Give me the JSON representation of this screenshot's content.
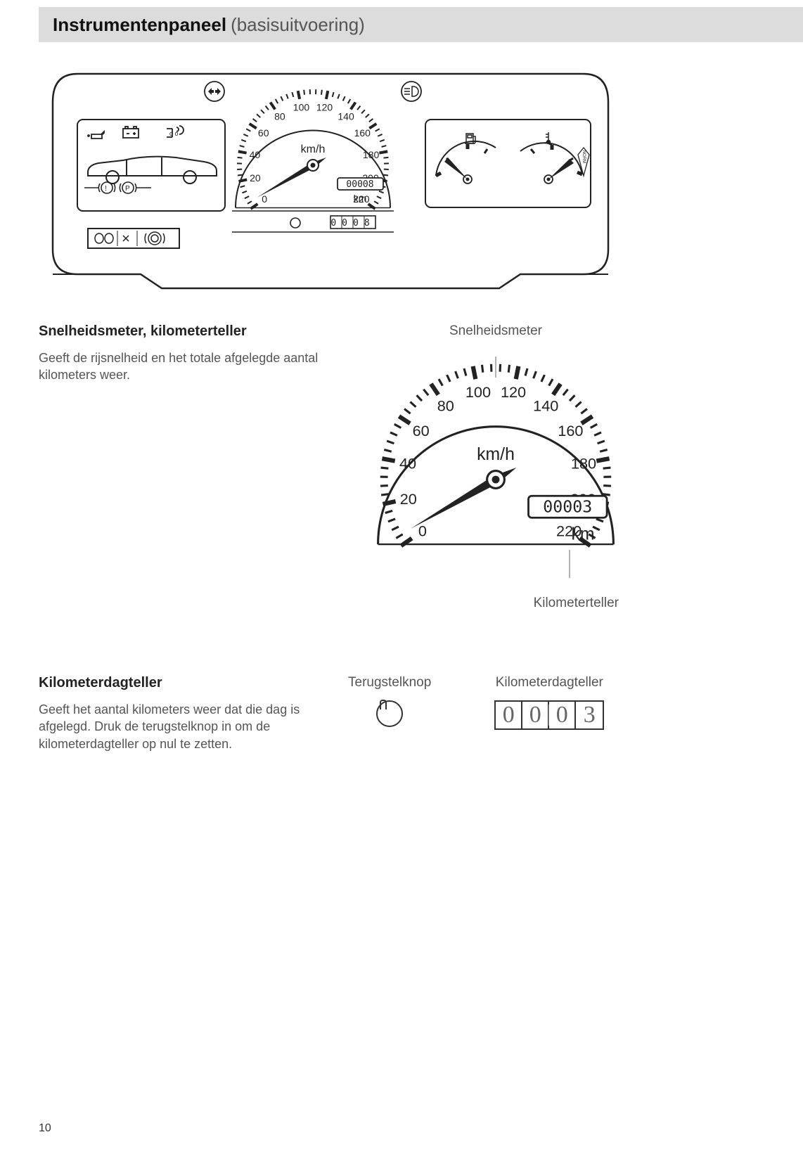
{
  "page_number": "10",
  "header": {
    "title_bold": "Instrumentenpaneel",
    "title_paren": "(basisuitvoering)"
  },
  "cluster": {
    "speedo": {
      "labels": [
        "0",
        "20",
        "40",
        "60",
        "80",
        "100",
        "120",
        "140",
        "160",
        "180",
        "200",
        "220"
      ],
      "unit": "km/h",
      "odometer": "00008",
      "odo_unit": "km",
      "trip": "0008"
    },
    "temp_label": "NORM"
  },
  "section1": {
    "heading": "Snelheidsmeter, kilometerteller",
    "body": "Geeft de rijsnelheid en het totale afgelegde aantal kilometers weer."
  },
  "speedo_detail": {
    "label_top": "Snelheidsmeter",
    "labels": [
      "0",
      "20",
      "40",
      "60",
      "80",
      "100",
      "120",
      "140",
      "160",
      "180",
      "200",
      "220"
    ],
    "unit": "km/h",
    "odometer": "00003",
    "odo_unit": "km",
    "label_bottom": "Kilometerteller"
  },
  "section2": {
    "heading": "Kilometerdagteller",
    "body": "Geeft het aantal kilometers weer dat die dag is afgelegd. Druk de terugstelknop in om de kilometerdagteller op nul te zetten."
  },
  "trip_detail": {
    "reset_label": "Terugstelknop",
    "trip_label": "Kilometerdagteller",
    "digits": [
      "0",
      "0",
      "0",
      "3"
    ]
  },
  "style": {
    "bg": "#ffffff",
    "header_bg": "#dcdcdc",
    "text": "#2a2a2a",
    "muted": "#555555",
    "line": "#222222"
  }
}
